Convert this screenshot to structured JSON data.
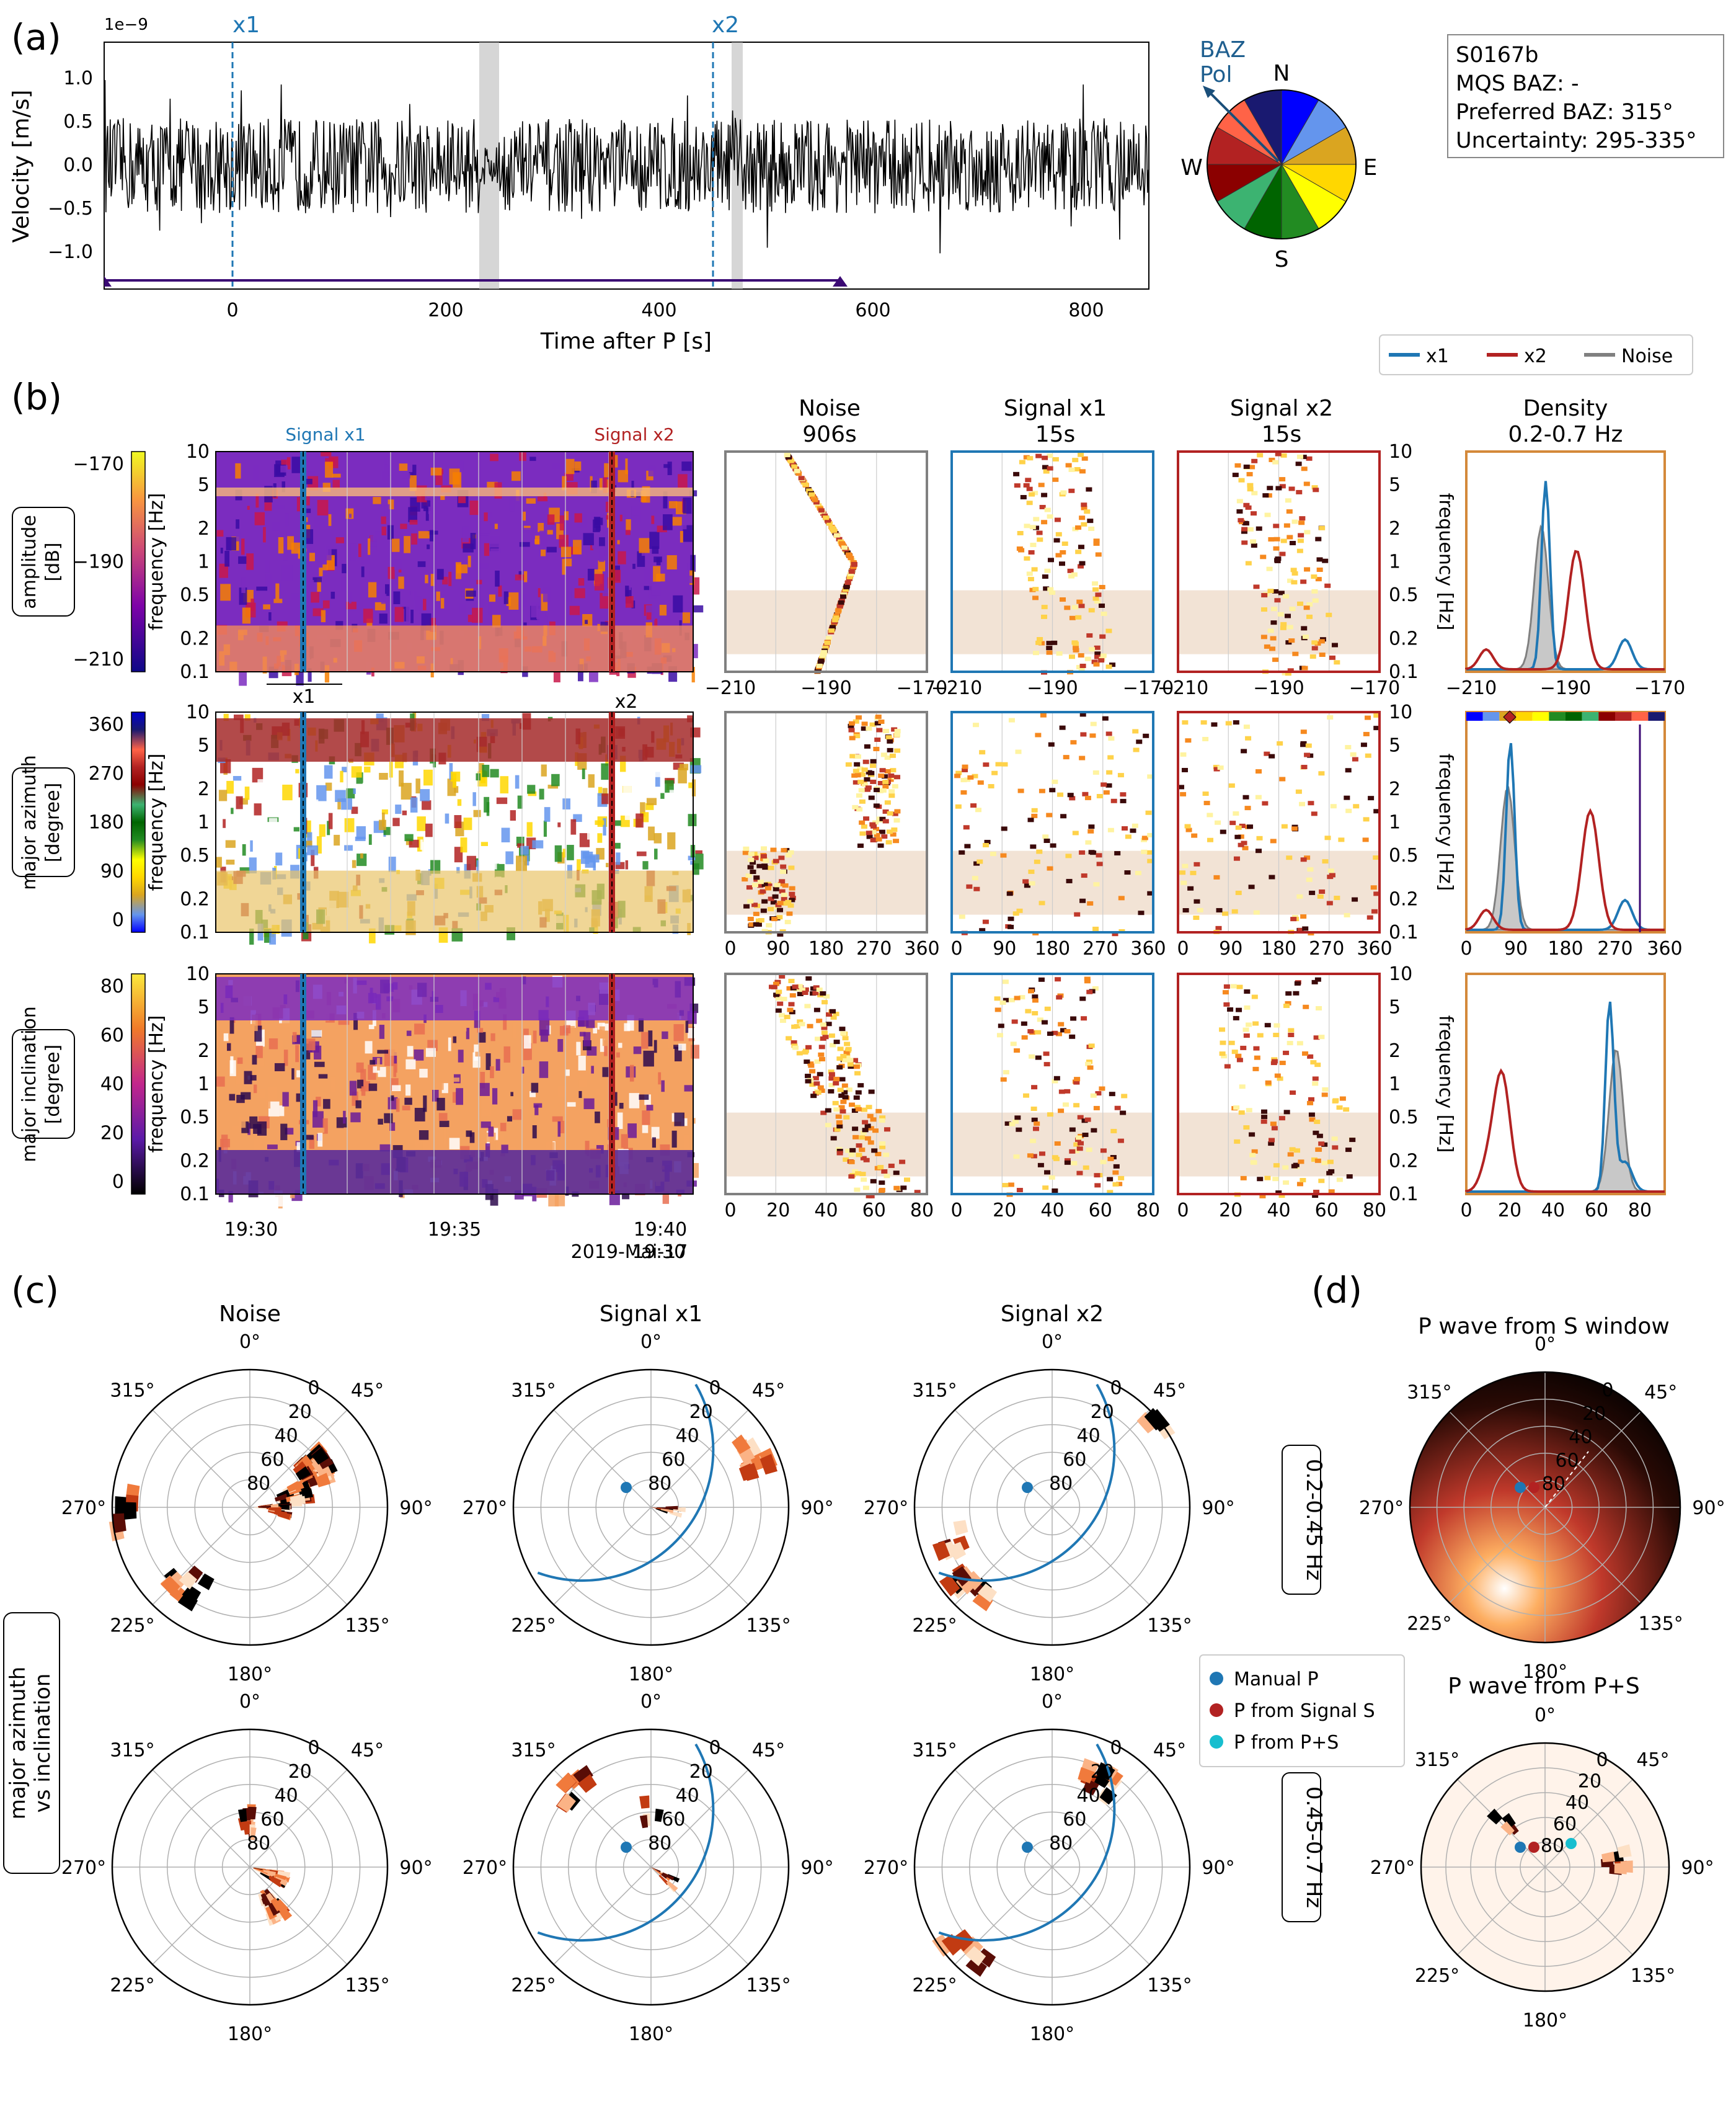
{
  "panels": {
    "a": "(a)",
    "b": "(b)",
    "c": "(c)",
    "d": "(d)"
  },
  "trace": {
    "exponent": "1e−9",
    "ylabel": "Velocity [m/s]",
    "xlabel": "Time after P [s]",
    "xticks": [
      "0",
      "200",
      "400",
      "600",
      "800"
    ],
    "yticks": [
      "1.0",
      "0.5",
      "0.0",
      "−0.5",
      "−1.0"
    ],
    "marker_x1": "x1",
    "marker_x2": "x2"
  },
  "compass": {
    "baz": "BAZ",
    "pol": "Pol",
    "N": "N",
    "E": "E",
    "S": "S",
    "W": "W"
  },
  "infobox": {
    "line1": "S0167b",
    "line2": "MQS BAZ: -",
    "line3": "Preferred BAZ: 315°",
    "line4": "Uncertainty: 295-335°"
  },
  "legend_top": {
    "x1": "x1",
    "x2": "x2",
    "noise": "Noise"
  },
  "col_titles": {
    "noise_1": "Noise",
    "noise_2": "906s",
    "x1_1": "Signal x1",
    "x1_2": "15s",
    "x2_1": "Signal x2",
    "x2_2": "15s",
    "dens_1": "Density",
    "dens_2": "0.2-0.7 Hz"
  },
  "spec": {
    "signal_x1": "Signal x1",
    "signal_x2": "Signal x2",
    "x1": "x1",
    "x2": "x2",
    "time_ticks": [
      "19:30",
      "19:35",
      "19:40"
    ],
    "date": "2019-Mai-17",
    "freq_label": "frequency [Hz]",
    "freq_ticks": [
      "10",
      "5",
      "2",
      "1",
      "0.5",
      "0.2",
      "0.1"
    ]
  },
  "rows": [
    {
      "box1": "amplitude",
      "box2": "[dB]",
      "cbar": [
        "−170",
        "−190",
        "−210"
      ],
      "xticks": [
        "−210",
        "−190",
        "−170"
      ],
      "dens_xticks": [
        "−210",
        "−190",
        "−170"
      ]
    },
    {
      "box1": "major azimuth",
      "box2": "[degree]",
      "cbar": [
        "360",
        "270",
        "180",
        "90",
        "0"
      ],
      "xticks": [
        "0",
        "90",
        "180",
        "270",
        "360"
      ],
      "dens_xticks": [
        "0",
        "90",
        "180",
        "270",
        "360"
      ]
    },
    {
      "box1": "major inclination",
      "box2": "[degree]",
      "cbar": [
        "80",
        "60",
        "40",
        "20",
        "0"
      ],
      "xticks": [
        "0",
        "20",
        "40",
        "60",
        "80"
      ],
      "dens_xticks": [
        "0",
        "20",
        "40",
        "60",
        "80"
      ]
    }
  ],
  "polar": {
    "ylab1": "major azimuth",
    "ylab2": "vs inclination",
    "col_noise": "Noise",
    "col_x1": "Signal x1",
    "col_x2": "Signal x2",
    "band1": "0.2-0.45 Hz",
    "band2": "0.45-0.7 Hz",
    "d_title1": "P wave from S window",
    "d_title2": "P wave from P+S",
    "angles": [
      "0°",
      "45°",
      "90°",
      "135°",
      "180°",
      "225°",
      "270°",
      "315°"
    ],
    "radial": [
      "0",
      "20",
      "40",
      "60",
      "80"
    ]
  },
  "legend_polar": {
    "manual": "Manual P",
    "from_s": "P from Signal S",
    "from_ps": "P from P+S"
  },
  "colors": {
    "x1": "#1f77b4",
    "x2": "#b22222",
    "noise": "#808080",
    "orange_frame": "#d4893a",
    "band": "#f2e3d5",
    "manual": "#1f77b4",
    "from_s": "#b22222",
    "from_ps": "#17becf"
  },
  "chart_data": [
    {
      "type": "line",
      "title": "",
      "xlabel": "Time after P [s]",
      "ylabel": "Velocity [m/s]",
      "xlim": [
        -120,
        860
      ],
      "ylim": [
        -1.35,
        1.35
      ],
      "y_scale": "1e-9",
      "markers": [
        {
          "name": "x1",
          "x": 0
        },
        {
          "name": "x2",
          "x": 450
        }
      ],
      "shaded": [
        [
          230,
          250
        ],
        [
          470,
          480
        ]
      ]
    },
    {
      "type": "line",
      "title": "Density 0.2-0.7 Hz",
      "xlabel": "amplitude [dB]",
      "xlim": [
        -210,
        -165
      ],
      "series": [
        {
          "name": "x1",
          "peak_x": -192
        },
        {
          "name": "x2",
          "peak_x": -185
        },
        {
          "name": "Noise",
          "peak_x": -193
        }
      ]
    },
    {
      "type": "line",
      "title": "Density 0.2-0.7 Hz",
      "xlabel": "major azimuth [degree]",
      "xlim": [
        0,
        360
      ],
      "series": [
        {
          "name": "x1",
          "peak_x": 80
        },
        {
          "name": "x2",
          "peak_x": 225
        },
        {
          "name": "Noise",
          "peak_x": 75
        }
      ],
      "markers": [
        {
          "name": "BAZ",
          "x": 315
        }
      ]
    },
    {
      "type": "line",
      "title": "Density 0.2-0.7 Hz",
      "xlabel": "major inclination [degree]",
      "xlim": [
        0,
        90
      ],
      "series": [
        {
          "name": "x1",
          "peak_x": 65
        },
        {
          "name": "x2",
          "peak_x": 16
        },
        {
          "name": "Noise",
          "peak_x": 68
        }
      ]
    }
  ]
}
